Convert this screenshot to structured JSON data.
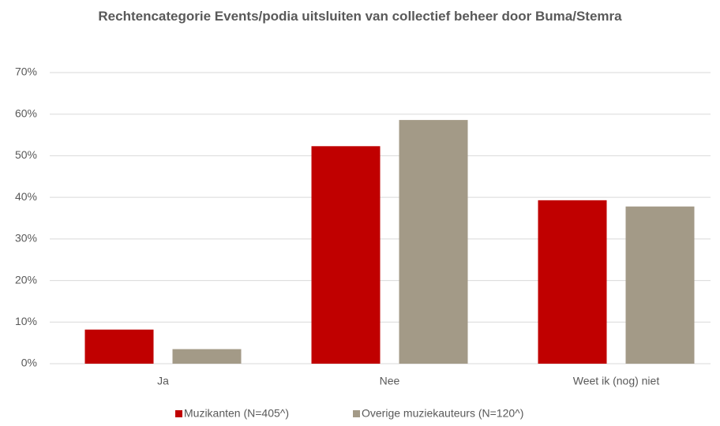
{
  "chart_data": {
    "type": "bar",
    "title": "Rechtencategorie Events/podia uitsluiten van collectief beheer door Buma/Stemra",
    "categories": [
      "Ja",
      "Nee",
      "Weet ik (nog) niet"
    ],
    "series": [
      {
        "name": "Muzikanten (N=405^)",
        "color": "#c00000",
        "values": [
          8.2,
          52.3,
          39.3
        ]
      },
      {
        "name": "Overige muziekauteurs (N=120^)",
        "color": "#a39a87",
        "values": [
          3.5,
          58.6,
          37.8
        ]
      }
    ],
    "ylim": [
      0,
      70
    ],
    "yticks": [
      {
        "value": 0,
        "label": "0%"
      },
      {
        "value": 10,
        "label": "10%"
      },
      {
        "value": 20,
        "label": "20%"
      },
      {
        "value": 30,
        "label": "30%"
      },
      {
        "value": 40,
        "label": "40%"
      },
      {
        "value": 50,
        "label": "50%"
      },
      {
        "value": 60,
        "label": "60%"
      },
      {
        "value": 70,
        "label": "70%"
      }
    ],
    "grid": true,
    "legend": "bottom"
  }
}
